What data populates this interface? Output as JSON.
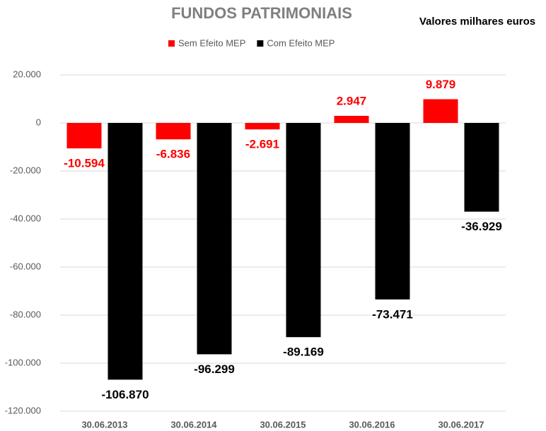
{
  "chart_data": {
    "type": "bar",
    "title": "FUNDOS PATRIMONIAIS",
    "subtitle": "Valores milhares euros",
    "categories": [
      "30.06.2013",
      "30.06.2014",
      "30.06.2015",
      "30.06.2016",
      "30.06.2017"
    ],
    "series": [
      {
        "name": "Sem Efeito MEP",
        "color": "#ff0000",
        "values": [
          -10594,
          -6836,
          -2691,
          2947,
          9879
        ],
        "value_labels": [
          "-10.594",
          "-6.836",
          "-2.691",
          "2.947",
          "9.879"
        ]
      },
      {
        "name": "Com Efeito MEP",
        "color": "#000000",
        "values": [
          -106870,
          -96299,
          -89169,
          -73471,
          -36929
        ],
        "value_labels": [
          "-106.870",
          "-96.299",
          "-89.169",
          "-73.471",
          "-36.929"
        ]
      }
    ],
    "ylim": [
      -120000,
      20000
    ],
    "yticks": [
      {
        "value": -120000,
        "label": "-120.000"
      },
      {
        "value": -100000,
        "label": "-100.000"
      },
      {
        "value": -80000,
        "label": "-80.000"
      },
      {
        "value": -60000,
        "label": "-60.000"
      },
      {
        "value": -40000,
        "label": "-40.000"
      },
      {
        "value": -20000,
        "label": "-20.000"
      },
      0,
      {
        "value": 20000,
        "label": "20.000"
      }
    ],
    "grid": true,
    "legend": "top"
  }
}
